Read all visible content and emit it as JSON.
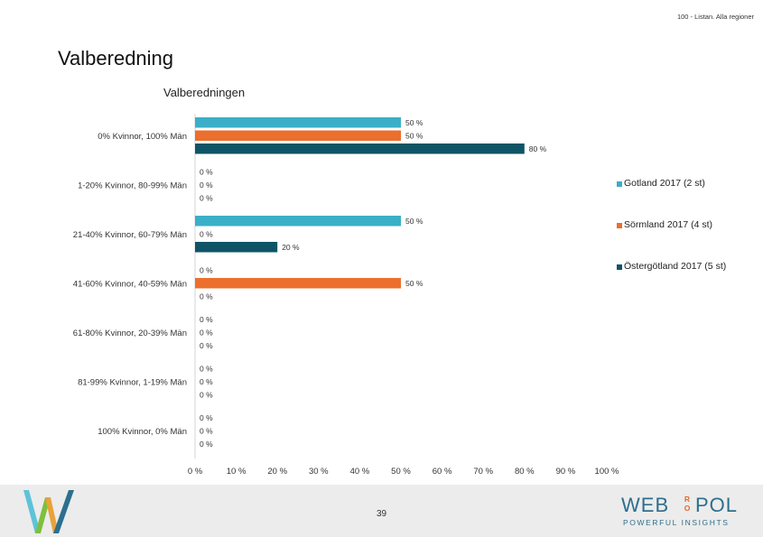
{
  "header": {
    "top_right": "100 - Listan. Alla regioner",
    "page_title": "Valberedning"
  },
  "colors": {
    "gotland": "#3aafc7",
    "sormland": "#ec6f2d",
    "ostergotland": "#0f5466",
    "axis": "#d4d4d4",
    "footer_bg": "#ececec",
    "brand_blue": "#2d6f8e",
    "brand_orange": "#e06b2b"
  },
  "chart_data": {
    "type": "bar",
    "orientation": "horizontal",
    "title": "Valberedningen",
    "xlabel": "",
    "ylabel": "",
    "xlim": [
      0,
      100
    ],
    "x_ticks": [
      "0 %",
      "10 %",
      "20 %",
      "30 %",
      "40 %",
      "50 %",
      "60 %",
      "70 %",
      "80 %",
      "90 %",
      "100 %"
    ],
    "categories": [
      "0% Kvinnor, 100% Män",
      "1-20% Kvinnor, 80-99% Män",
      "21-40% Kvinnor, 60-79% Män",
      "41-60% Kvinnor, 40-59% Män",
      "61-80% Kvinnor, 20-39% Män",
      "81-99% Kvinnor, 1-19% Män",
      "100% Kvinnor, 0% Män"
    ],
    "series": [
      {
        "name": "Gotland 2017 (2 st)",
        "color": "#3aafc7",
        "values": [
          50,
          0,
          50,
          0,
          0,
          0,
          0
        ]
      },
      {
        "name": "Sörmland 2017 (4 st)",
        "color": "#ec6f2d",
        "values": [
          50,
          0,
          0,
          50,
          0,
          0,
          0
        ]
      },
      {
        "name": "Östergötland 2017 (5 st)",
        "color": "#0f5466",
        "values": [
          80,
          0,
          20,
          0,
          0,
          0,
          0
        ]
      }
    ],
    "value_label_suffix": " %",
    "legend_position": "right",
    "grid": false
  },
  "footer": {
    "page_number": "39",
    "brand": {
      "left": "WEB",
      "middle_top": "R",
      "middle_bottom": "O",
      "right": "POL",
      "tagline": "POWERFUL INSIGHTS"
    }
  }
}
